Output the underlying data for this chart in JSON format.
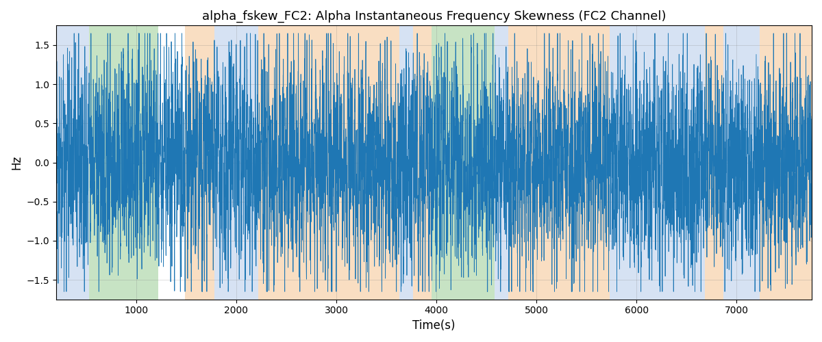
{
  "title": "alpha_fskew_FC2: Alpha Instantaneous Frequency Skewness (FC2 Channel)",
  "xlabel": "Time(s)",
  "ylabel": "Hz",
  "xlim": [
    200,
    7750
  ],
  "ylim": [
    -1.75,
    1.75
  ],
  "yticks": [
    -1.5,
    -1.0,
    -0.5,
    0.0,
    0.5,
    1.0,
    1.5
  ],
  "xticks": [
    1000,
    2000,
    3000,
    4000,
    5000,
    6000,
    7000
  ],
  "line_color": "#1f77b4",
  "line_width": 0.6,
  "bg_color": "#ffffff",
  "seed": 42,
  "n_points": 7000,
  "x_start": 200,
  "x_end": 7750,
  "colored_bands": [
    {
      "xmin": 200,
      "xmax": 530,
      "color": "#aec6e8",
      "alpha": 0.5
    },
    {
      "xmin": 530,
      "xmax": 1220,
      "color": "#90c98a",
      "alpha": 0.5
    },
    {
      "xmin": 1490,
      "xmax": 1780,
      "color": "#f5c89a",
      "alpha": 0.6
    },
    {
      "xmin": 1780,
      "xmax": 2220,
      "color": "#aec6e8",
      "alpha": 0.5
    },
    {
      "xmin": 2220,
      "xmax": 3630,
      "color": "#f5c89a",
      "alpha": 0.6
    },
    {
      "xmin": 3630,
      "xmax": 3770,
      "color": "#aec6e8",
      "alpha": 0.5
    },
    {
      "xmin": 3770,
      "xmax": 3950,
      "color": "#f5c89a",
      "alpha": 0.6
    },
    {
      "xmin": 3950,
      "xmax": 4580,
      "color": "#90c98a",
      "alpha": 0.5
    },
    {
      "xmin": 4580,
      "xmax": 4720,
      "color": "#aec6e8",
      "alpha": 0.5
    },
    {
      "xmin": 4720,
      "xmax": 5730,
      "color": "#f5c89a",
      "alpha": 0.6
    },
    {
      "xmin": 5730,
      "xmax": 6680,
      "color": "#aec6e8",
      "alpha": 0.5
    },
    {
      "xmin": 6680,
      "xmax": 6870,
      "color": "#f5c89a",
      "alpha": 0.6
    },
    {
      "xmin": 6870,
      "xmax": 7230,
      "color": "#aec6e8",
      "alpha": 0.5
    },
    {
      "xmin": 7230,
      "xmax": 7750,
      "color": "#f5c89a",
      "alpha": 0.6
    }
  ]
}
